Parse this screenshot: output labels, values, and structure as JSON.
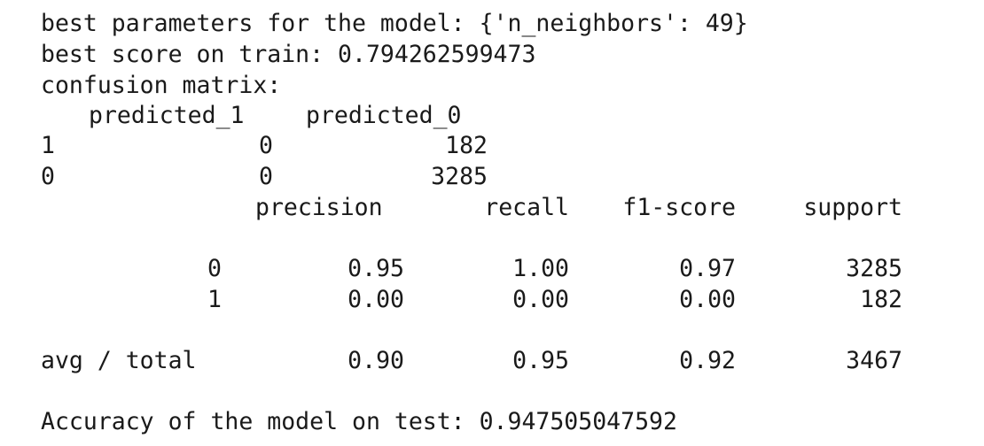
{
  "output": {
    "best_params_line": "best parameters for the model: {'n_neighbors': 49}",
    "best_score_line": "best score on train: 0.794262599473",
    "confusion_label": "confusion matrix:",
    "confusion": {
      "headers": [
        "predicted_1",
        "predicted_0"
      ],
      "rows": [
        {
          "label": "1",
          "predicted_1": "0",
          "predicted_0": "182"
        },
        {
          "label": "0",
          "predicted_1": "0",
          "predicted_0": "3285"
        }
      ]
    },
    "report": {
      "headers": [
        "precision",
        "recall",
        "f1-score",
        "support"
      ],
      "rows": [
        {
          "label": "0",
          "precision": "0.95",
          "recall": "1.00",
          "f1": "0.97",
          "support": "3285"
        },
        {
          "label": "1",
          "precision": "0.00",
          "recall": "0.00",
          "f1": "0.00",
          "support": "182"
        }
      ],
      "total": {
        "label": "avg / total",
        "precision": "0.90",
        "recall": "0.95",
        "f1": "0.92",
        "support": "3467"
      }
    },
    "accuracy_line": "Accuracy of the model on test: 0.947505047592"
  }
}
